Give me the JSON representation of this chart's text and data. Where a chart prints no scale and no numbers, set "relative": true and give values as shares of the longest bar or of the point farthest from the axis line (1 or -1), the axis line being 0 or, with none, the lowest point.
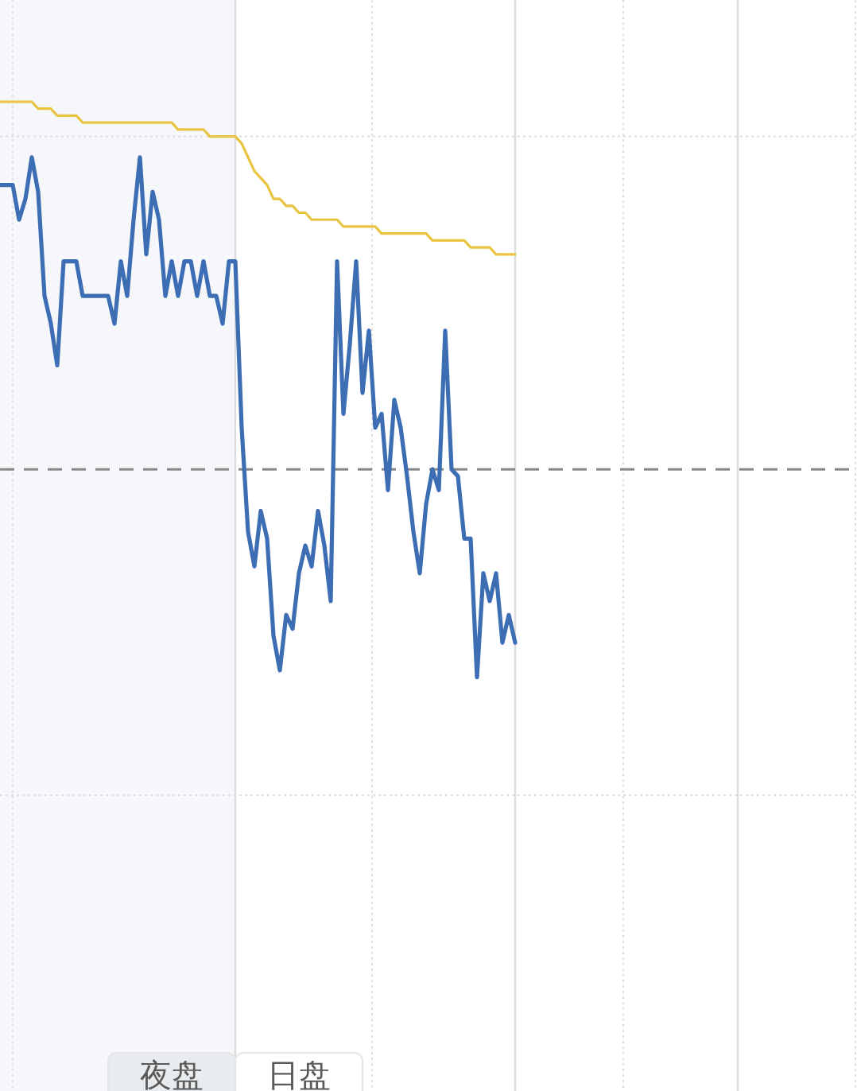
{
  "chart_data": {
    "type": "line",
    "relative": true,
    "grid": true,
    "categories": [
      null,
      null,
      null,
      null,
      null,
      null,
      null,
      null,
      null,
      null,
      null,
      null,
      null,
      null,
      null,
      null,
      null,
      null,
      null,
      null,
      null,
      null,
      null,
      null,
      null,
      null,
      null,
      null,
      null,
      null,
      null,
      null,
      null,
      null,
      null,
      null,
      null,
      null,
      null,
      null,
      null,
      null,
      null,
      null,
      null,
      null,
      null,
      null,
      null,
      null,
      null,
      null,
      null,
      null,
      null,
      null,
      null,
      null,
      null,
      null,
      null,
      null,
      null,
      null,
      null,
      null,
      null,
      null,
      null,
      null,
      null,
      null,
      null,
      null,
      null,
      null,
      null,
      null,
      null,
      null,
      null,
      null,
      null,
      null,
      null,
      null,
      null,
      null,
      null,
      null,
      null,
      null,
      null,
      null,
      null,
      null,
      null,
      null,
      null,
      null,
      null,
      null,
      null,
      null,
      null,
      null,
      null,
      null,
      null,
      null,
      null,
      null,
      null,
      null,
      null,
      null,
      null,
      null,
      null,
      null,
      null,
      null,
      null,
      null,
      null,
      null,
      null,
      null,
      null,
      null,
      null,
      null,
      null,
      null,
      null
    ],
    "series": [
      {
        "color": "#e8c440",
        "values": [
          1,
          1,
          1,
          1,
          1,
          1,
          0.99,
          0.99,
          0.99,
          0.98,
          0.98,
          0.98,
          0.98,
          0.97,
          0.97,
          0.97,
          0.97,
          0.97,
          0.97,
          0.97,
          0.97,
          0.97,
          0.97,
          0.97,
          0.97,
          0.97,
          0.97,
          0.97,
          0.96,
          0.96,
          0.96,
          0.96,
          0.96,
          0.95,
          0.95,
          0.95,
          0.95,
          0.95,
          0.94,
          0.92,
          0.9,
          0.89,
          0.88,
          0.86,
          0.86,
          0.85,
          0.85,
          0.84,
          0.84,
          0.83,
          0.83,
          0.83,
          0.83,
          0.83,
          0.82,
          0.82,
          0.82,
          0.82,
          0.82,
          0.82,
          0.81,
          0.81,
          0.81,
          0.81,
          0.81,
          0.81,
          0.81,
          0.81,
          0.8,
          0.8,
          0.8,
          0.8,
          0.8,
          0.8,
          0.79,
          0.79,
          0.79,
          0.79,
          0.78,
          0.78,
          0.78,
          0.78,
          null,
          null,
          null,
          null,
          null,
          null,
          null,
          null,
          null,
          null,
          null,
          null,
          null,
          null,
          null,
          null,
          null,
          null,
          null,
          null,
          null,
          null,
          null,
          null,
          null,
          null,
          null,
          null,
          null,
          null,
          null,
          null,
          null,
          null,
          null,
          null,
          null,
          null,
          null,
          null,
          null,
          null,
          null,
          null,
          null,
          null,
          null,
          null,
          null,
          null,
          null,
          null,
          null
        ]
      },
      {
        "color": "#3d6eb4",
        "values": [
          0.88,
          0.88,
          0.88,
          0.83,
          0.86,
          0.92,
          0.87,
          0.72,
          0.68,
          0.62,
          0.77,
          0.77,
          0.77,
          0.72,
          0.72,
          0.72,
          0.72,
          0.72,
          0.68,
          0.77,
          0.72,
          0.83,
          0.92,
          0.78,
          0.87,
          0.83,
          0.72,
          0.77,
          0.72,
          0.77,
          0.77,
          0.72,
          0.77,
          0.72,
          0.72,
          0.68,
          0.77,
          0.77,
          0.53,
          0.38,
          0.33,
          0.41,
          0.37,
          0.23,
          0.18,
          0.26,
          0.24,
          0.32,
          0.36,
          0.33,
          0.41,
          0.36,
          0.28,
          0.77,
          0.55,
          0.65,
          0.77,
          0.58,
          0.67,
          0.53,
          0.55,
          0.44,
          0.57,
          0.53,
          0.46,
          0.38,
          0.32,
          0.42,
          0.47,
          0.44,
          0.67,
          0.47,
          0.46,
          0.37,
          0.37,
          0.17,
          0.32,
          0.28,
          0.32,
          0.22,
          0.26,
          0.22,
          null,
          null,
          null,
          null,
          null,
          null,
          null,
          null,
          null,
          null,
          null,
          null,
          null,
          null,
          null,
          null,
          null,
          null,
          null,
          null,
          null,
          null,
          null,
          null,
          null,
          null,
          null,
          null,
          null,
          null,
          null,
          null,
          null,
          null,
          null,
          null,
          null,
          null,
          null,
          null,
          null,
          null,
          null,
          null,
          null,
          null,
          null,
          null,
          null,
          null,
          null,
          null,
          null
        ]
      }
    ],
    "ref_lines": [
      {
        "axis": "y",
        "value": 0.47,
        "color": "#888888",
        "line_style": "dashed"
      },
      {
        "axis": "y",
        "value": 0.95,
        "color": "#dddddd",
        "line_style": "dotted"
      },
      {
        "axis": "y",
        "value": 0,
        "color": "#dddddd",
        "line_style": "dotted"
      }
    ],
    "annotations": [
      "夜盘",
      "日盘"
    ]
  }
}
